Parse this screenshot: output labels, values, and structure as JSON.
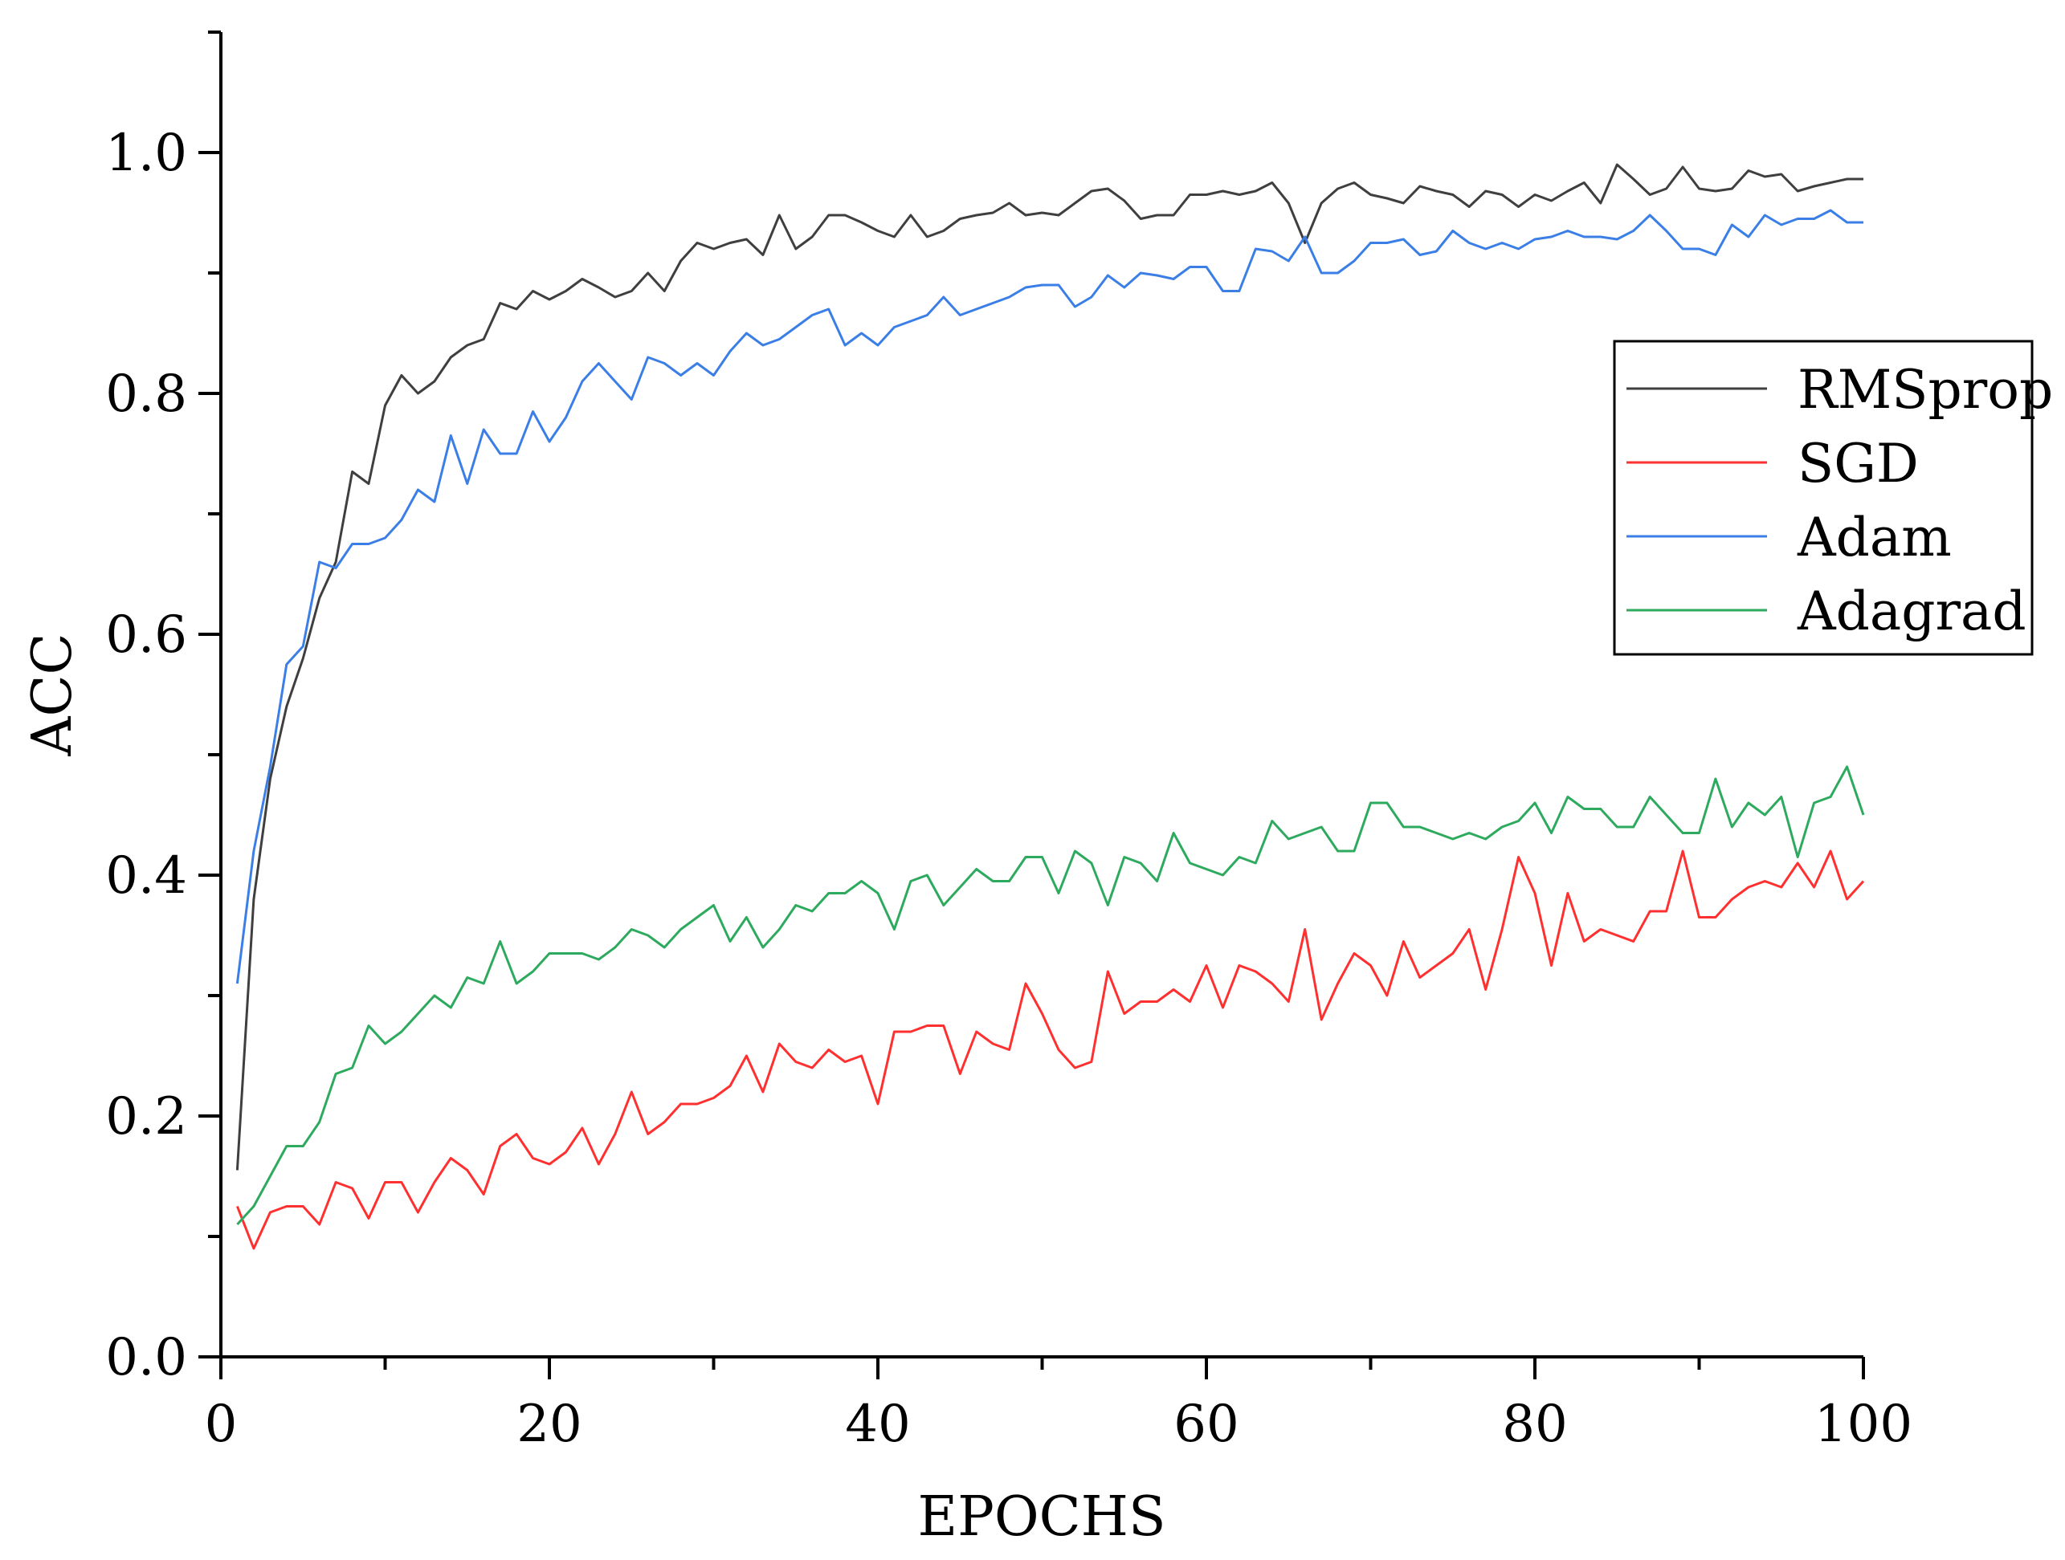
{
  "chart_data": {
    "type": "line",
    "title": "",
    "xlabel": "EPOCHS",
    "ylabel": "ACC",
    "xlim": [
      0,
      100
    ],
    "ylim": [
      0,
      1.1
    ],
    "x_ticks": [
      "0",
      "20",
      "40",
      "60",
      "80",
      "100"
    ],
    "y_ticks": [
      "0.0",
      "0.2",
      "0.4",
      "0.6",
      "0.8",
      "1.0"
    ],
    "grid": false,
    "legend_position": "top-right",
    "x": [
      1,
      2,
      3,
      4,
      5,
      6,
      7,
      8,
      9,
      10,
      11,
      12,
      13,
      14,
      15,
      16,
      17,
      18,
      19,
      20,
      21,
      22,
      23,
      24,
      25,
      26,
      27,
      28,
      29,
      30,
      31,
      32,
      33,
      34,
      35,
      36,
      37,
      38,
      39,
      40,
      41,
      42,
      43,
      44,
      45,
      46,
      47,
      48,
      49,
      50,
      51,
      52,
      53,
      54,
      55,
      56,
      57,
      58,
      59,
      60,
      61,
      62,
      63,
      64,
      65,
      66,
      67,
      68,
      69,
      70,
      71,
      72,
      73,
      74,
      75,
      76,
      77,
      78,
      79,
      80,
      81,
      82,
      83,
      84,
      85,
      86,
      87,
      88,
      89,
      90,
      91,
      92,
      93,
      94,
      95,
      96,
      97,
      98,
      99,
      100
    ],
    "series": [
      {
        "name": "RMSprop",
        "color": "#3f3f3f",
        "values": [
          0.155,
          0.38,
          0.48,
          0.54,
          0.58,
          0.63,
          0.66,
          0.735,
          0.725,
          0.79,
          0.815,
          0.8,
          0.81,
          0.83,
          0.84,
          0.845,
          0.875,
          0.87,
          0.885,
          0.878,
          0.885,
          0.895,
          0.888,
          0.88,
          0.885,
          0.9,
          0.885,
          0.91,
          0.925,
          0.92,
          0.925,
          0.928,
          0.915,
          0.948,
          0.92,
          0.93,
          0.948,
          0.948,
          0.942,
          0.935,
          0.93,
          0.948,
          0.93,
          0.935,
          0.945,
          0.948,
          0.95,
          0.958,
          0.948,
          0.95,
          0.948,
          0.958,
          0.968,
          0.97,
          0.96,
          0.945,
          0.948,
          0.948,
          0.965,
          0.965,
          0.968,
          0.965,
          0.968,
          0.975,
          0.958,
          0.925,
          0.958,
          0.97,
          0.975,
          0.965,
          0.962,
          0.958,
          0.972,
          0.968,
          0.965,
          0.955,
          0.968,
          0.965,
          0.955,
          0.965,
          0.96,
          0.968,
          0.975,
          0.958,
          0.99,
          0.978,
          0.965,
          0.97,
          0.988,
          0.97,
          0.968,
          0.97,
          0.985,
          0.98,
          0.982,
          0.968,
          0.972,
          0.975,
          0.978,
          0.978
        ]
      },
      {
        "name": "SGD",
        "color": "#ff3030",
        "values": [
          0.125,
          0.09,
          0.12,
          0.125,
          0.125,
          0.11,
          0.145,
          0.14,
          0.115,
          0.145,
          0.145,
          0.12,
          0.145,
          0.165,
          0.155,
          0.135,
          0.175,
          0.185,
          0.165,
          0.16,
          0.17,
          0.19,
          0.16,
          0.185,
          0.22,
          0.185,
          0.195,
          0.21,
          0.21,
          0.215,
          0.225,
          0.25,
          0.22,
          0.26,
          0.245,
          0.24,
          0.255,
          0.245,
          0.25,
          0.21,
          0.27,
          0.27,
          0.275,
          0.275,
          0.235,
          0.27,
          0.26,
          0.255,
          0.31,
          0.285,
          0.255,
          0.24,
          0.245,
          0.32,
          0.285,
          0.295,
          0.295,
          0.305,
          0.295,
          0.325,
          0.29,
          0.325,
          0.32,
          0.31,
          0.295,
          0.355,
          0.28,
          0.31,
          0.335,
          0.325,
          0.3,
          0.345,
          0.315,
          0.325,
          0.335,
          0.355,
          0.305,
          0.355,
          0.415,
          0.385,
          0.325,
          0.385,
          0.345,
          0.355,
          0.35,
          0.345,
          0.37,
          0.37,
          0.42,
          0.365,
          0.365,
          0.38,
          0.39,
          0.395,
          0.39,
          0.41,
          0.39,
          0.42,
          0.38,
          0.395
        ]
      },
      {
        "name": "Adam",
        "color": "#3b7fe6",
        "values": [
          0.31,
          0.42,
          0.49,
          0.575,
          0.59,
          0.66,
          0.655,
          0.675,
          0.675,
          0.68,
          0.695,
          0.72,
          0.71,
          0.765,
          0.725,
          0.77,
          0.75,
          0.75,
          0.785,
          0.76,
          0.78,
          0.81,
          0.825,
          0.81,
          0.795,
          0.83,
          0.825,
          0.815,
          0.825,
          0.815,
          0.835,
          0.85,
          0.84,
          0.845,
          0.855,
          0.865,
          0.87,
          0.84,
          0.85,
          0.84,
          0.855,
          0.86,
          0.865,
          0.88,
          0.865,
          0.87,
          0.875,
          0.88,
          0.888,
          0.89,
          0.89,
          0.872,
          0.88,
          0.898,
          0.888,
          0.9,
          0.898,
          0.895,
          0.905,
          0.905,
          0.885,
          0.885,
          0.92,
          0.918,
          0.91,
          0.93,
          0.9,
          0.9,
          0.91,
          0.925,
          0.925,
          0.928,
          0.915,
          0.918,
          0.935,
          0.925,
          0.92,
          0.925,
          0.92,
          0.928,
          0.93,
          0.935,
          0.93,
          0.93,
          0.928,
          0.935,
          0.948,
          0.935,
          0.92,
          0.92,
          0.915,
          0.94,
          0.93,
          0.948,
          0.94,
          0.945,
          0.945,
          0.952,
          0.942,
          0.942
        ]
      },
      {
        "name": "Adagrad",
        "color": "#2eaa5f",
        "values": [
          0.11,
          0.125,
          0.15,
          0.175,
          0.175,
          0.195,
          0.235,
          0.24,
          0.275,
          0.26,
          0.27,
          0.285,
          0.3,
          0.29,
          0.315,
          0.31,
          0.345,
          0.31,
          0.32,
          0.335,
          0.335,
          0.335,
          0.33,
          0.34,
          0.355,
          0.35,
          0.34,
          0.355,
          0.365,
          0.375,
          0.345,
          0.365,
          0.34,
          0.355,
          0.375,
          0.37,
          0.385,
          0.385,
          0.395,
          0.385,
          0.355,
          0.395,
          0.4,
          0.375,
          0.39,
          0.405,
          0.395,
          0.395,
          0.415,
          0.415,
          0.385,
          0.42,
          0.41,
          0.375,
          0.415,
          0.41,
          0.395,
          0.435,
          0.41,
          0.405,
          0.4,
          0.415,
          0.41,
          0.445,
          0.43,
          0.435,
          0.44,
          0.42,
          0.42,
          0.46,
          0.46,
          0.44,
          0.44,
          0.435,
          0.43,
          0.435,
          0.43,
          0.44,
          0.445,
          0.46,
          0.435,
          0.465,
          0.455,
          0.455,
          0.44,
          0.44,
          0.465,
          0.45,
          0.435,
          0.435,
          0.48,
          0.44,
          0.46,
          0.45,
          0.465,
          0.415,
          0.46,
          0.465,
          0.49,
          0.45
        ]
      }
    ]
  }
}
